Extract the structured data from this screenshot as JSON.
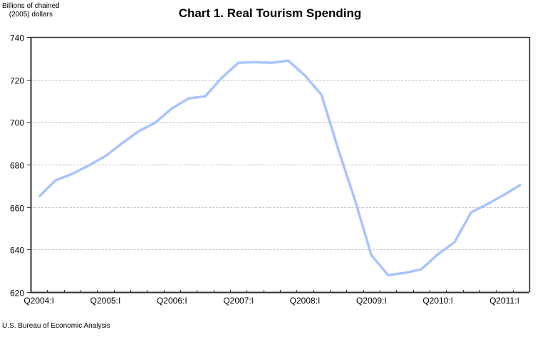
{
  "chart_data": {
    "type": "line",
    "title": "Chart 1. Real Tourism Spending",
    "ylabel": "Billions of chained (2005) dollars",
    "ylabel_lines": [
      "Billions of chained",
      "(2005) dollars"
    ],
    "xlabel": "",
    "ylim": [
      620,
      740
    ],
    "yticks": [
      620,
      640,
      660,
      680,
      700,
      720,
      740
    ],
    "grid": "horizontal dashed",
    "legend": "none",
    "x": [
      "Q2004:I",
      "Q2004:II",
      "Q2004:III",
      "Q2004:IV",
      "Q2005:I",
      "Q2005:II",
      "Q2005:III",
      "Q2005:IV",
      "Q2006:I",
      "Q2006:II",
      "Q2006:III",
      "Q2006:IV",
      "Q2007:I",
      "Q2007:II",
      "Q2007:III",
      "Q2007:IV",
      "Q2008:I",
      "Q2008:II",
      "Q2008:III",
      "Q2008:IV",
      "Q2009:I",
      "Q2009:II",
      "Q2009:III",
      "Q2009:IV",
      "Q2010:I",
      "Q2010:II",
      "Q2010:III",
      "Q2010:IV",
      "Q2011:I",
      "Q2011:II"
    ],
    "xtick_labels": [
      "Q2004:I",
      "Q2005:I",
      "Q2006:I",
      "Q2007:I",
      "Q2008:I",
      "Q2009:I",
      "Q2010:I",
      "Q2011:I"
    ],
    "series": [
      {
        "name": "Real Tourism Spending",
        "color": "#a8c4ff",
        "values": [
          664.9,
          672.6,
          675.6,
          679.6,
          684.0,
          690.0,
          695.7,
          699.7,
          706.4,
          711.1,
          712.1,
          720.8,
          727.9,
          728.2,
          727.9,
          728.9,
          721.9,
          712.8,
          687.3,
          663.6,
          637.4,
          628.0,
          629.0,
          630.7,
          637.8,
          643.5,
          657.5,
          661.5,
          665.9,
          670.6
        ]
      }
    ]
  },
  "source": "U.S. Bureau of Economic Analysis"
}
